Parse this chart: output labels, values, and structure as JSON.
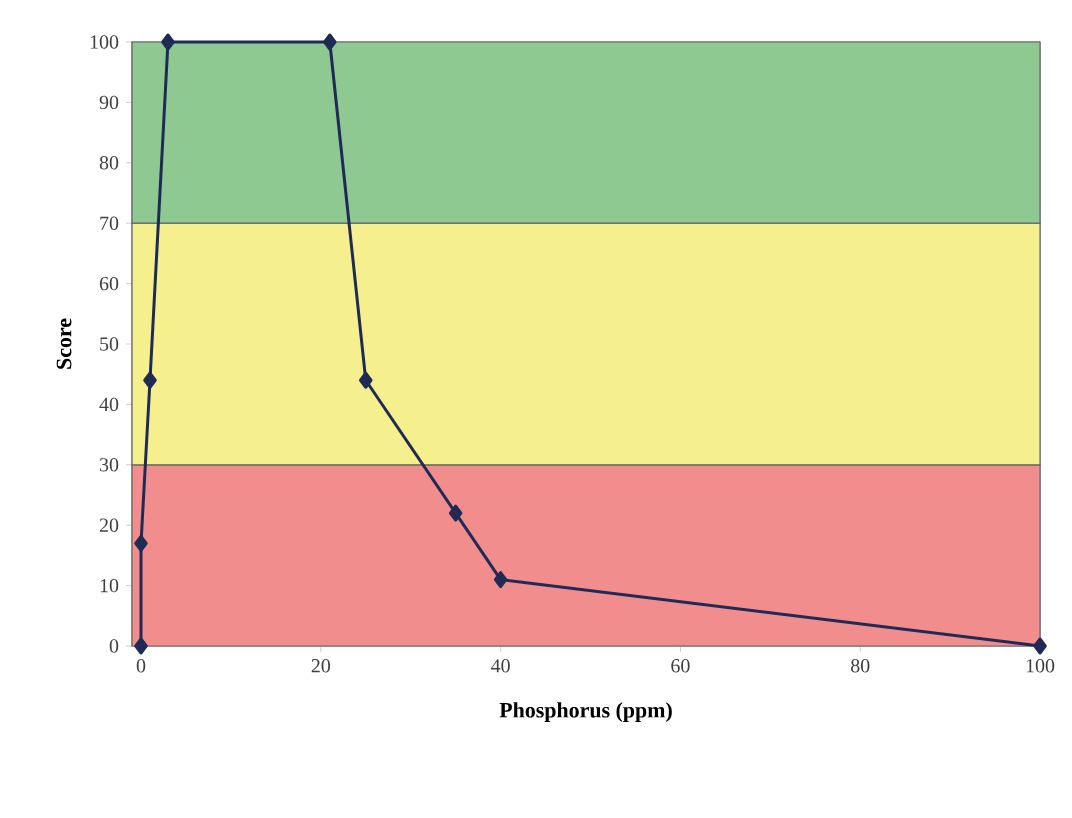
{
  "chart_data": {
    "type": "line",
    "xlabel": "Phosphorus (ppm)",
    "ylabel": "Score",
    "x": [
      0,
      0,
      1,
      3,
      21,
      25,
      35,
      40,
      100
    ],
    "series": [
      {
        "color": "#1f2a55",
        "values": [
          0,
          17,
          44,
          100,
          100,
          44,
          22,
          11,
          0
        ]
      }
    ],
    "xlim": [
      -1,
      100
    ],
    "ylim": [
      0,
      100
    ],
    "xticks": [
      0,
      20,
      40,
      60,
      80,
      100
    ],
    "yticks": [
      0,
      10,
      20,
      30,
      40,
      50,
      60,
      70,
      80,
      90,
      100
    ],
    "bands": [
      {
        "axis": "y",
        "from": 0,
        "to": 30,
        "color": "#f28d8d"
      },
      {
        "axis": "y",
        "from": 30,
        "to": 70,
        "color": "#f5ef8e"
      },
      {
        "axis": "y",
        "from": 70,
        "to": 100,
        "color": "#8ec991"
      }
    ],
    "marker": "diamond",
    "line_style": "solid",
    "grid": false
  }
}
